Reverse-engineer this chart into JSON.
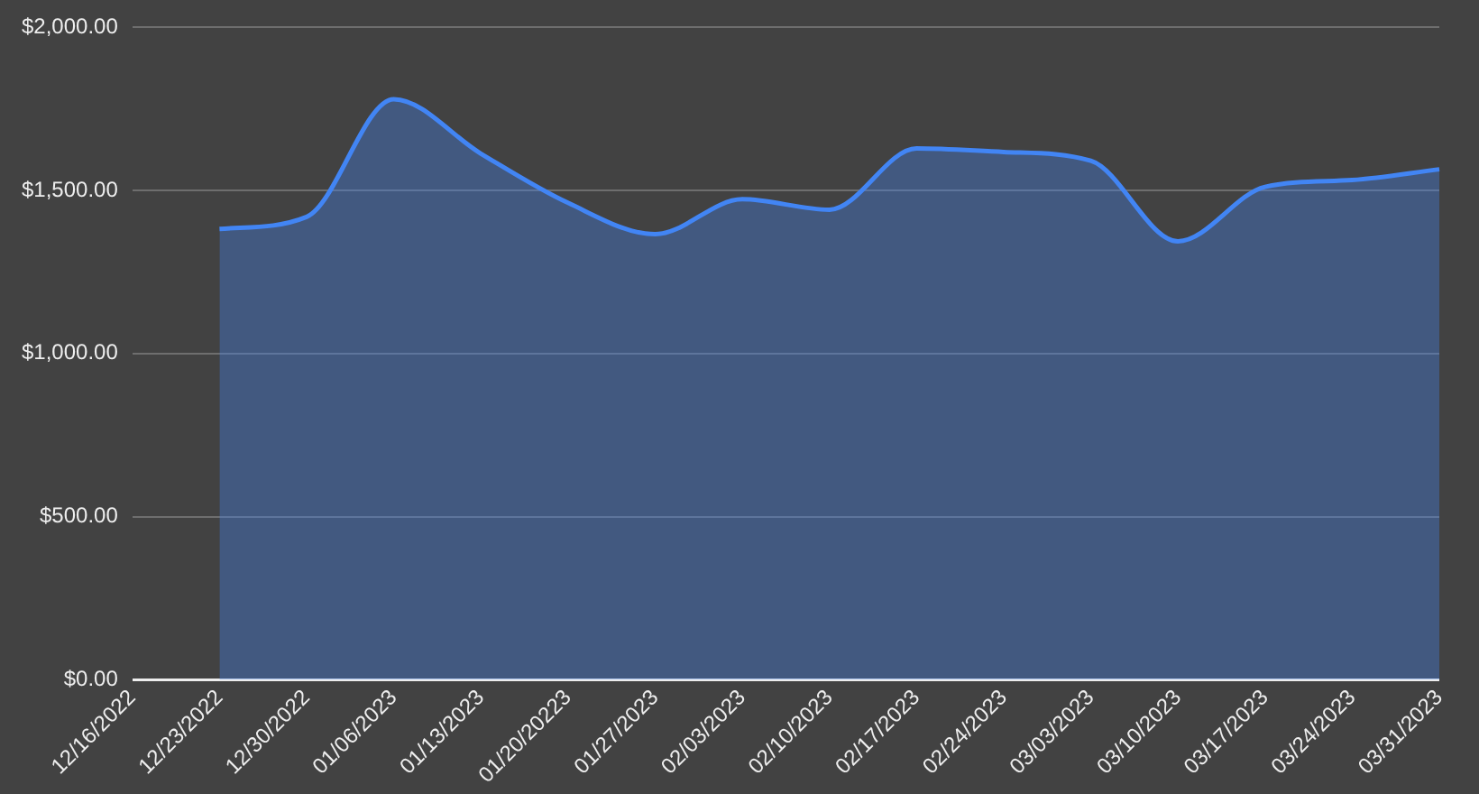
{
  "chart_data": {
    "type": "area",
    "categories": [
      "12/16/2022",
      "12/23/2022",
      "12/30/2022",
      "01/06/2023",
      "01/13/2023",
      "01/20/20223",
      "01/27/2023",
      "02/03/2023",
      "02/10/2023",
      "02/17/2023",
      "02/24/2023",
      "03/03/2023",
      "03/10/2023",
      "03/17/2023",
      "03/24/2023",
      "03/31/2023"
    ],
    "series": [
      {
        "color": "#4285f4",
        "values": [
          null,
          1382,
          1419,
          1780,
          1613,
          1462,
          1366,
          1473,
          1441,
          1629,
          1618,
          1591,
          1344,
          1511,
          1532,
          1565
        ]
      }
    ],
    "ylim": [
      0,
      2000
    ],
    "yticks": [
      {
        "value": 0,
        "label": "$0.00"
      },
      {
        "value": 500,
        "label": "$500.00"
      },
      {
        "value": 1000,
        "label": "$1,000.00"
      },
      {
        "value": 1500,
        "label": "$1,500.00"
      },
      {
        "value": 2000,
        "label": "$2,000.00"
      }
    ],
    "grid": "y",
    "legend": false
  }
}
